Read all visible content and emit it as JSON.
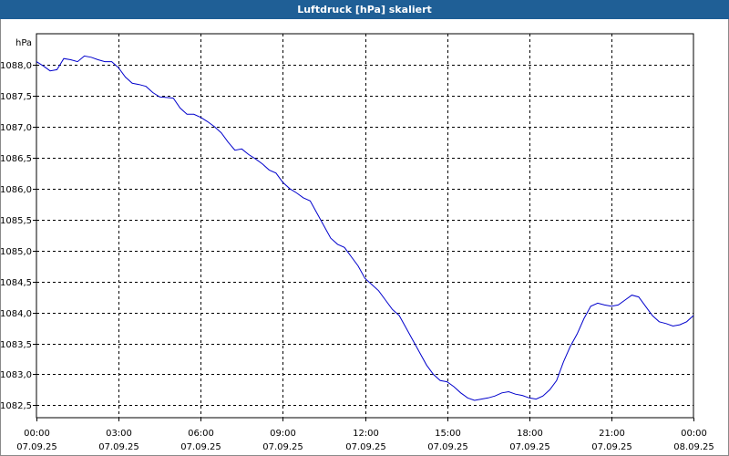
{
  "window": {
    "title": "Luftdruck [hPa] skaliert"
  },
  "colors": {
    "title_bar": "#1f5f96",
    "line": "#0000cc",
    "grid": "#000000"
  },
  "chart_data": {
    "type": "line",
    "title": "Luftdruck [hPa] skaliert",
    "ylabel": "hPa",
    "xlabel": "",
    "ylim": [
      1082.3,
      1088.5
    ],
    "y_ticks": [
      1082.5,
      1083.0,
      1083.5,
      1084.0,
      1084.5,
      1085.0,
      1085.5,
      1086.0,
      1086.5,
      1087.0,
      1087.5,
      1088.0
    ],
    "y_tick_labels": [
      "1082,5",
      "1083,0",
      "1083,5",
      "1084,0",
      "1084,5",
      "1085,0",
      "1085,5",
      "1086,0",
      "1086,5",
      "1087,0",
      "1087,5",
      "1088,0"
    ],
    "x_range_hours": [
      0,
      24
    ],
    "x_ticks": [
      0,
      3,
      6,
      9,
      12,
      15,
      18,
      21,
      24
    ],
    "x_tick_labels": [
      [
        "00:00",
        "07.09.25"
      ],
      [
        "03:00",
        "07.09.25"
      ],
      [
        "06:00",
        "07.09.25"
      ],
      [
        "09:00",
        "07.09.25"
      ],
      [
        "12:00",
        "07.09.25"
      ],
      [
        "15:00",
        "07.09.25"
      ],
      [
        "18:00",
        "07.09.25"
      ],
      [
        "21:00",
        "07.09.25"
      ],
      [
        "00:00",
        "08.09.25"
      ]
    ],
    "grid": true,
    "legend": "none",
    "series": [
      {
        "x": [
          0,
          0.25,
          0.5,
          0.75,
          1.0,
          1.25,
          1.5,
          1.75,
          2.0,
          2.25,
          2.5,
          2.75,
          3.0,
          3.25,
          3.5,
          3.75,
          4.0,
          4.25,
          4.5,
          4.75,
          5.0,
          5.25,
          5.5,
          5.75,
          6.0,
          6.25,
          6.5,
          6.75,
          7.0,
          7.25,
          7.5,
          7.75,
          8.0,
          8.25,
          8.5,
          8.75,
          9.0,
          9.25,
          9.5,
          9.75,
          10.0,
          10.25,
          10.5,
          10.75,
          11.0,
          11.25,
          11.5,
          11.75,
          12.0,
          12.25,
          12.5,
          12.75,
          13.0,
          13.25,
          13.5,
          13.75,
          14.0,
          14.25,
          14.5,
          14.75,
          15.0,
          15.25,
          15.5,
          15.75,
          16.0,
          16.25,
          16.5,
          16.75,
          17.0,
          17.25,
          17.5,
          17.75,
          18.0,
          18.25,
          18.5,
          18.75,
          19.0,
          19.25,
          19.5,
          19.75,
          20.0,
          20.25,
          20.5,
          20.75,
          21.0,
          21.25,
          21.5,
          21.75,
          22.0,
          22.25,
          22.5,
          22.75,
          23.0,
          23.25,
          23.5,
          23.75,
          24.0
        ],
        "values": [
          1088.05,
          1087.98,
          1087.9,
          1087.92,
          1088.1,
          1088.08,
          1088.05,
          1088.14,
          1088.12,
          1088.08,
          1088.05,
          1088.05,
          1087.95,
          1087.8,
          1087.7,
          1087.68,
          1087.65,
          1087.55,
          1087.48,
          1087.47,
          1087.46,
          1087.3,
          1087.2,
          1087.2,
          1087.15,
          1087.08,
          1087.0,
          1086.9,
          1086.75,
          1086.62,
          1086.64,
          1086.55,
          1086.48,
          1086.4,
          1086.3,
          1086.25,
          1086.1,
          1086.0,
          1085.93,
          1085.85,
          1085.8,
          1085.6,
          1085.4,
          1085.2,
          1085.1,
          1085.05,
          1084.9,
          1084.75,
          1084.55,
          1084.45,
          1084.35,
          1084.2,
          1084.05,
          1083.95,
          1083.75,
          1083.55,
          1083.35,
          1083.15,
          1083.0,
          1082.9,
          1082.88,
          1082.8,
          1082.7,
          1082.62,
          1082.58,
          1082.6,
          1082.62,
          1082.65,
          1082.7,
          1082.72,
          1082.68,
          1082.66,
          1082.62,
          1082.6,
          1082.65,
          1082.75,
          1082.9,
          1083.2,
          1083.45,
          1083.65,
          1083.9,
          1084.1,
          1084.15,
          1084.12,
          1084.1,
          1084.12,
          1084.2,
          1084.28,
          1084.25,
          1084.1,
          1083.95,
          1083.85,
          1083.82,
          1083.78,
          1083.8,
          1083.85,
          1083.95
        ]
      }
    ]
  }
}
